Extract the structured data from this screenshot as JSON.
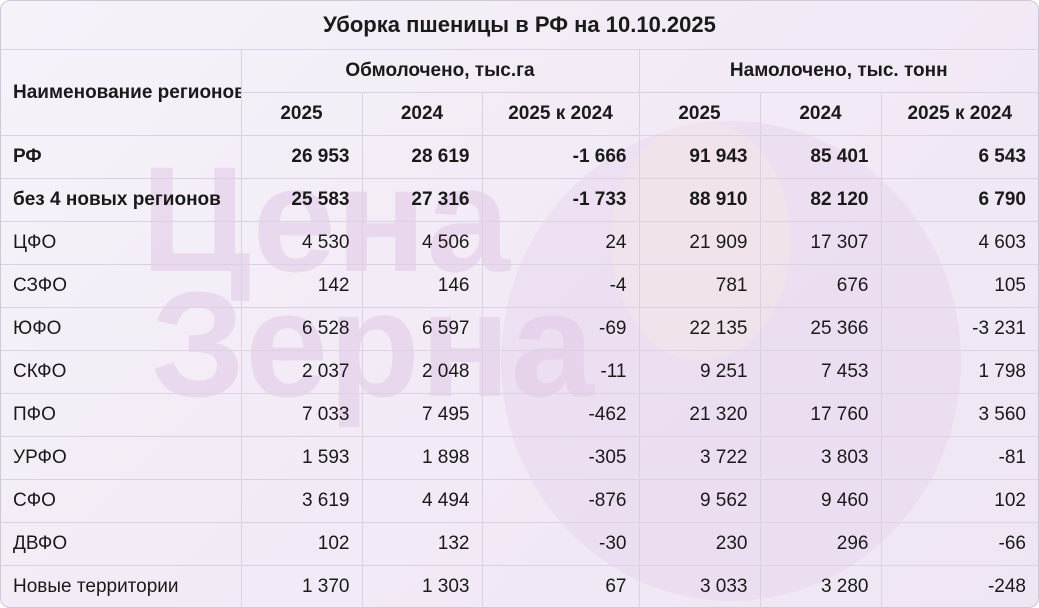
{
  "title": "Уборка пшеницы в РФ на 10.10.2025",
  "watermark": {
    "line1": "Цена",
    "line2": "Зерна"
  },
  "headers": {
    "region": "Наименование регионов",
    "group1": "Обмолочено, тыс.га",
    "group2": "Намолочено, тыс. тонн",
    "sub": [
      "2025",
      "2024",
      "2025 к 2024",
      "2025",
      "2024",
      "2025 к 2024"
    ]
  },
  "rows": [
    {
      "name": "РФ",
      "bold": true,
      "values": [
        "26 953",
        "28 619",
        "-1 666",
        "91 943",
        "85 401",
        "6 543"
      ]
    },
    {
      "name": "без 4 новых регионов",
      "bold": true,
      "values": [
        "25 583",
        "27 316",
        "-1 733",
        "88 910",
        "82 120",
        "6 790"
      ]
    },
    {
      "name": "ЦФО",
      "bold": false,
      "values": [
        "4 530",
        "4 506",
        "24",
        "21 909",
        "17 307",
        "4 603"
      ]
    },
    {
      "name": "СЗФО",
      "bold": false,
      "values": [
        "142",
        "146",
        "-4",
        "781",
        "676",
        "105"
      ]
    },
    {
      "name": "ЮФО",
      "bold": false,
      "values": [
        "6 528",
        "6 597",
        "-69",
        "22 135",
        "25 366",
        "-3 231"
      ]
    },
    {
      "name": "СКФО",
      "bold": false,
      "values": [
        "2 037",
        "2 048",
        "-11",
        "9 251",
        "7 453",
        "1 798"
      ]
    },
    {
      "name": "ПФО",
      "bold": false,
      "values": [
        "7 033",
        "7 495",
        "-462",
        "21 320",
        "17 760",
        "3 560"
      ]
    },
    {
      "name": "УРФО",
      "bold": false,
      "values": [
        "1 593",
        "1 898",
        "-305",
        "3 722",
        "3 803",
        "-81"
      ]
    },
    {
      "name": "СФО",
      "bold": false,
      "values": [
        "3 619",
        "4 494",
        "-876",
        "9 562",
        "9 460",
        "102"
      ]
    },
    {
      "name": "ДВФО",
      "bold": false,
      "values": [
        "102",
        "132",
        "-30",
        "230",
        "296",
        "-66"
      ]
    },
    {
      "name": "Новые территории",
      "bold": false,
      "values": [
        "1 370",
        "1 303",
        "67",
        "3 033",
        "3 280",
        "-248"
      ]
    }
  ]
}
